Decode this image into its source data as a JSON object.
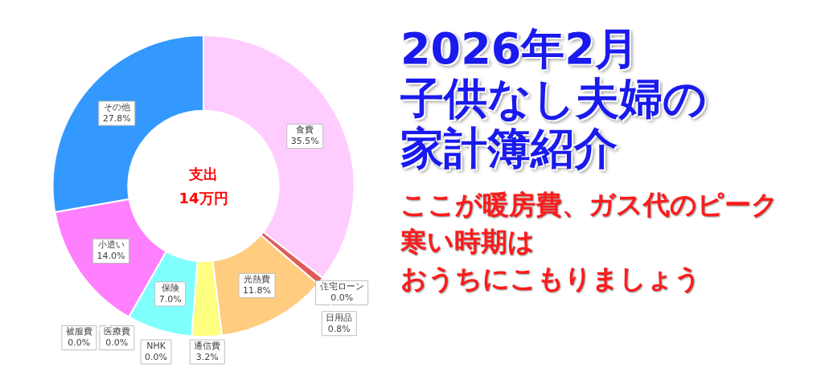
{
  "chart_data": {
    "type": "donut",
    "title": "2026年2月",
    "subtitle": "子供なし夫婦の家計簿紹介",
    "categories": [
      "食費",
      "住宅ローン",
      "日用品",
      "光熱費",
      "通信費",
      "NHK",
      "保険",
      "医療費",
      "被服費",
      "小遣い",
      "その他"
    ],
    "values": [
      35.5,
      0,
      0.8,
      11.8,
      3.2,
      0,
      7.0,
      0,
      0,
      14.0,
      27.8
    ],
    "value_labels": [
      "35.5%",
      "0.0%",
      "0.8%",
      "11.8%",
      "3.2%",
      "0.0%",
      "7.0%",
      "0.0%",
      "0.0%",
      "14.0%",
      "27.8%"
    ],
    "colors": [
      "#ffccff",
      "#c0504d",
      "#e05a5a",
      "#ffcc80",
      "#ffff80",
      "#9999ff",
      "#80ffff",
      "#99ccff",
      "#ccffcc",
      "#ff80ff",
      "#3399ff"
    ],
    "annotations": [
      "支出\n14万円",
      "ここが暖房費、ガス代のピーク",
      "寒い時期は",
      "おうちにこもりましょう"
    ],
    "legend": false
  }
}
